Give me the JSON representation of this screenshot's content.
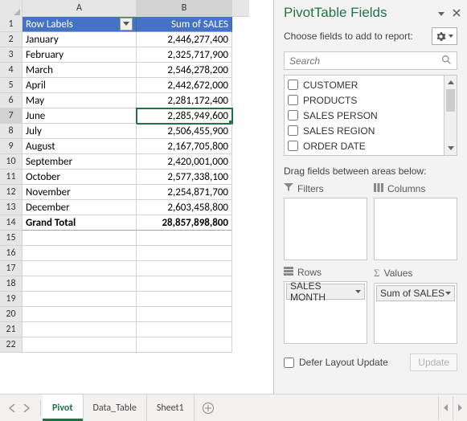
{
  "sheet": {
    "columns": {
      "a": "A",
      "b": "B"
    },
    "header": {
      "row_labels": "Row Labels",
      "sum": "Sum of SALES"
    },
    "rows": [
      {
        "month": "January",
        "value": "2,446,277,400"
      },
      {
        "month": "February",
        "value": "2,325,717,900"
      },
      {
        "month": "March",
        "value": "2,546,278,200"
      },
      {
        "month": "April",
        "value": "2,442,672,000"
      },
      {
        "month": "May",
        "value": "2,281,172,400"
      },
      {
        "month": "June",
        "value": "2,285,949,600"
      },
      {
        "month": "July",
        "value": "2,506,455,900"
      },
      {
        "month": "August",
        "value": "2,167,705,800"
      },
      {
        "month": "September",
        "value": "2,420,001,000"
      },
      {
        "month": "October",
        "value": "2,577,338,100"
      },
      {
        "month": "November",
        "value": "2,254,871,700"
      },
      {
        "month": "December",
        "value": "2,603,458,800"
      }
    ],
    "grand": {
      "label": "Grand Total",
      "value": "28,857,898,800"
    },
    "active_row": 7,
    "empty_row_count": 8,
    "tabs": [
      "Pivot",
      "Data_Table",
      "Sheet1"
    ],
    "active_tab": 0
  },
  "pane": {
    "title": "PivotTable Fields",
    "subtitle": "Choose fields to add to report:",
    "search_placeholder": "Search",
    "fields": [
      "CUSTOMER",
      "PRODUCTS",
      "SALES PERSON",
      "SALES REGION",
      "ORDER DATE"
    ],
    "drag_label": "Drag fields between areas below:",
    "areas": {
      "filters": {
        "label": "Filters",
        "items": []
      },
      "columns": {
        "label": "Columns",
        "items": []
      },
      "rows": {
        "label": "Rows",
        "items": [
          "SALES MONTH"
        ]
      },
      "values": {
        "label": "Values",
        "items": [
          "Sum of SALES"
        ]
      }
    },
    "defer_label": "Defer Layout Update",
    "update_label": "Update"
  },
  "colors": {
    "header_bg": "#4472c4",
    "selection": "#217346"
  }
}
